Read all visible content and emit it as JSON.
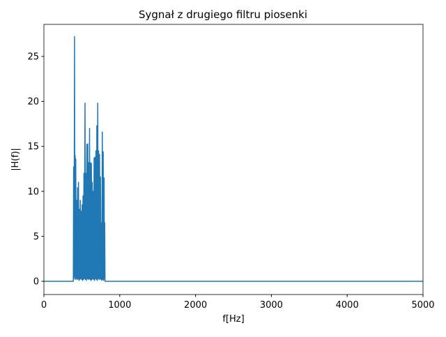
{
  "chart_data": {
    "type": "line",
    "title": "Sygnał z drugiego filtru piosenki",
    "xlabel": "f[Hz]",
    "ylabel": "|H(f)|",
    "x": [
      0,
      388,
      392,
      398,
      404,
      408,
      412,
      416,
      420,
      426,
      432,
      438,
      444,
      450,
      456,
      462,
      468,
      474,
      480,
      486,
      492,
      498,
      504,
      510,
      516,
      522,
      528,
      534,
      542,
      548,
      554,
      560,
      566,
      572,
      578,
      584,
      590,
      596,
      602,
      608,
      614,
      620,
      626,
      632,
      638,
      644,
      650,
      656,
      662,
      668,
      674,
      680,
      686,
      692,
      698,
      704,
      710,
      716,
      722,
      728,
      734,
      740,
      746,
      752,
      758,
      764,
      770,
      776,
      782,
      788,
      794,
      798,
      802,
      806,
      5000
    ],
    "values": [
      0,
      0,
      12.7,
      0.3,
      27.2,
      0.5,
      14,
      0.2,
      13.6,
      0.3,
      9.0,
      0.2,
      10.4,
      0.3,
      11.0,
      0.1,
      8.0,
      0.2,
      9.0,
      0.3,
      7.8,
      0.2,
      8.5,
      0.1,
      9.5,
      0.2,
      12,
      0.3,
      19.8,
      0.2,
      12,
      0.1,
      15.2,
      0.3,
      15.3,
      0.2,
      13.2,
      0.3,
      17,
      0.2,
      13.2,
      0.1,
      13.1,
      0.2,
      11,
      0.3,
      10,
      0.2,
      13.7,
      0.1,
      13.8,
      0.3,
      14.5,
      0.2,
      17.3,
      0.1,
      19.8,
      0.3,
      14.5,
      0.2,
      14.1,
      0.3,
      11.6,
      0.2,
      6.5,
      0.1,
      16.6,
      0.2,
      14.4,
      0.1,
      11.5,
      0.3,
      6.5,
      0,
      0
    ],
    "color": "#1f77b4",
    "xlim": [
      0,
      5000
    ],
    "xticks": [
      0,
      1000,
      2000,
      3000,
      4000,
      5000
    ],
    "ylim": [
      -1.47,
      28.56
    ],
    "yticks": [
      0,
      5,
      10,
      15,
      20,
      25
    ],
    "grid": false
  }
}
